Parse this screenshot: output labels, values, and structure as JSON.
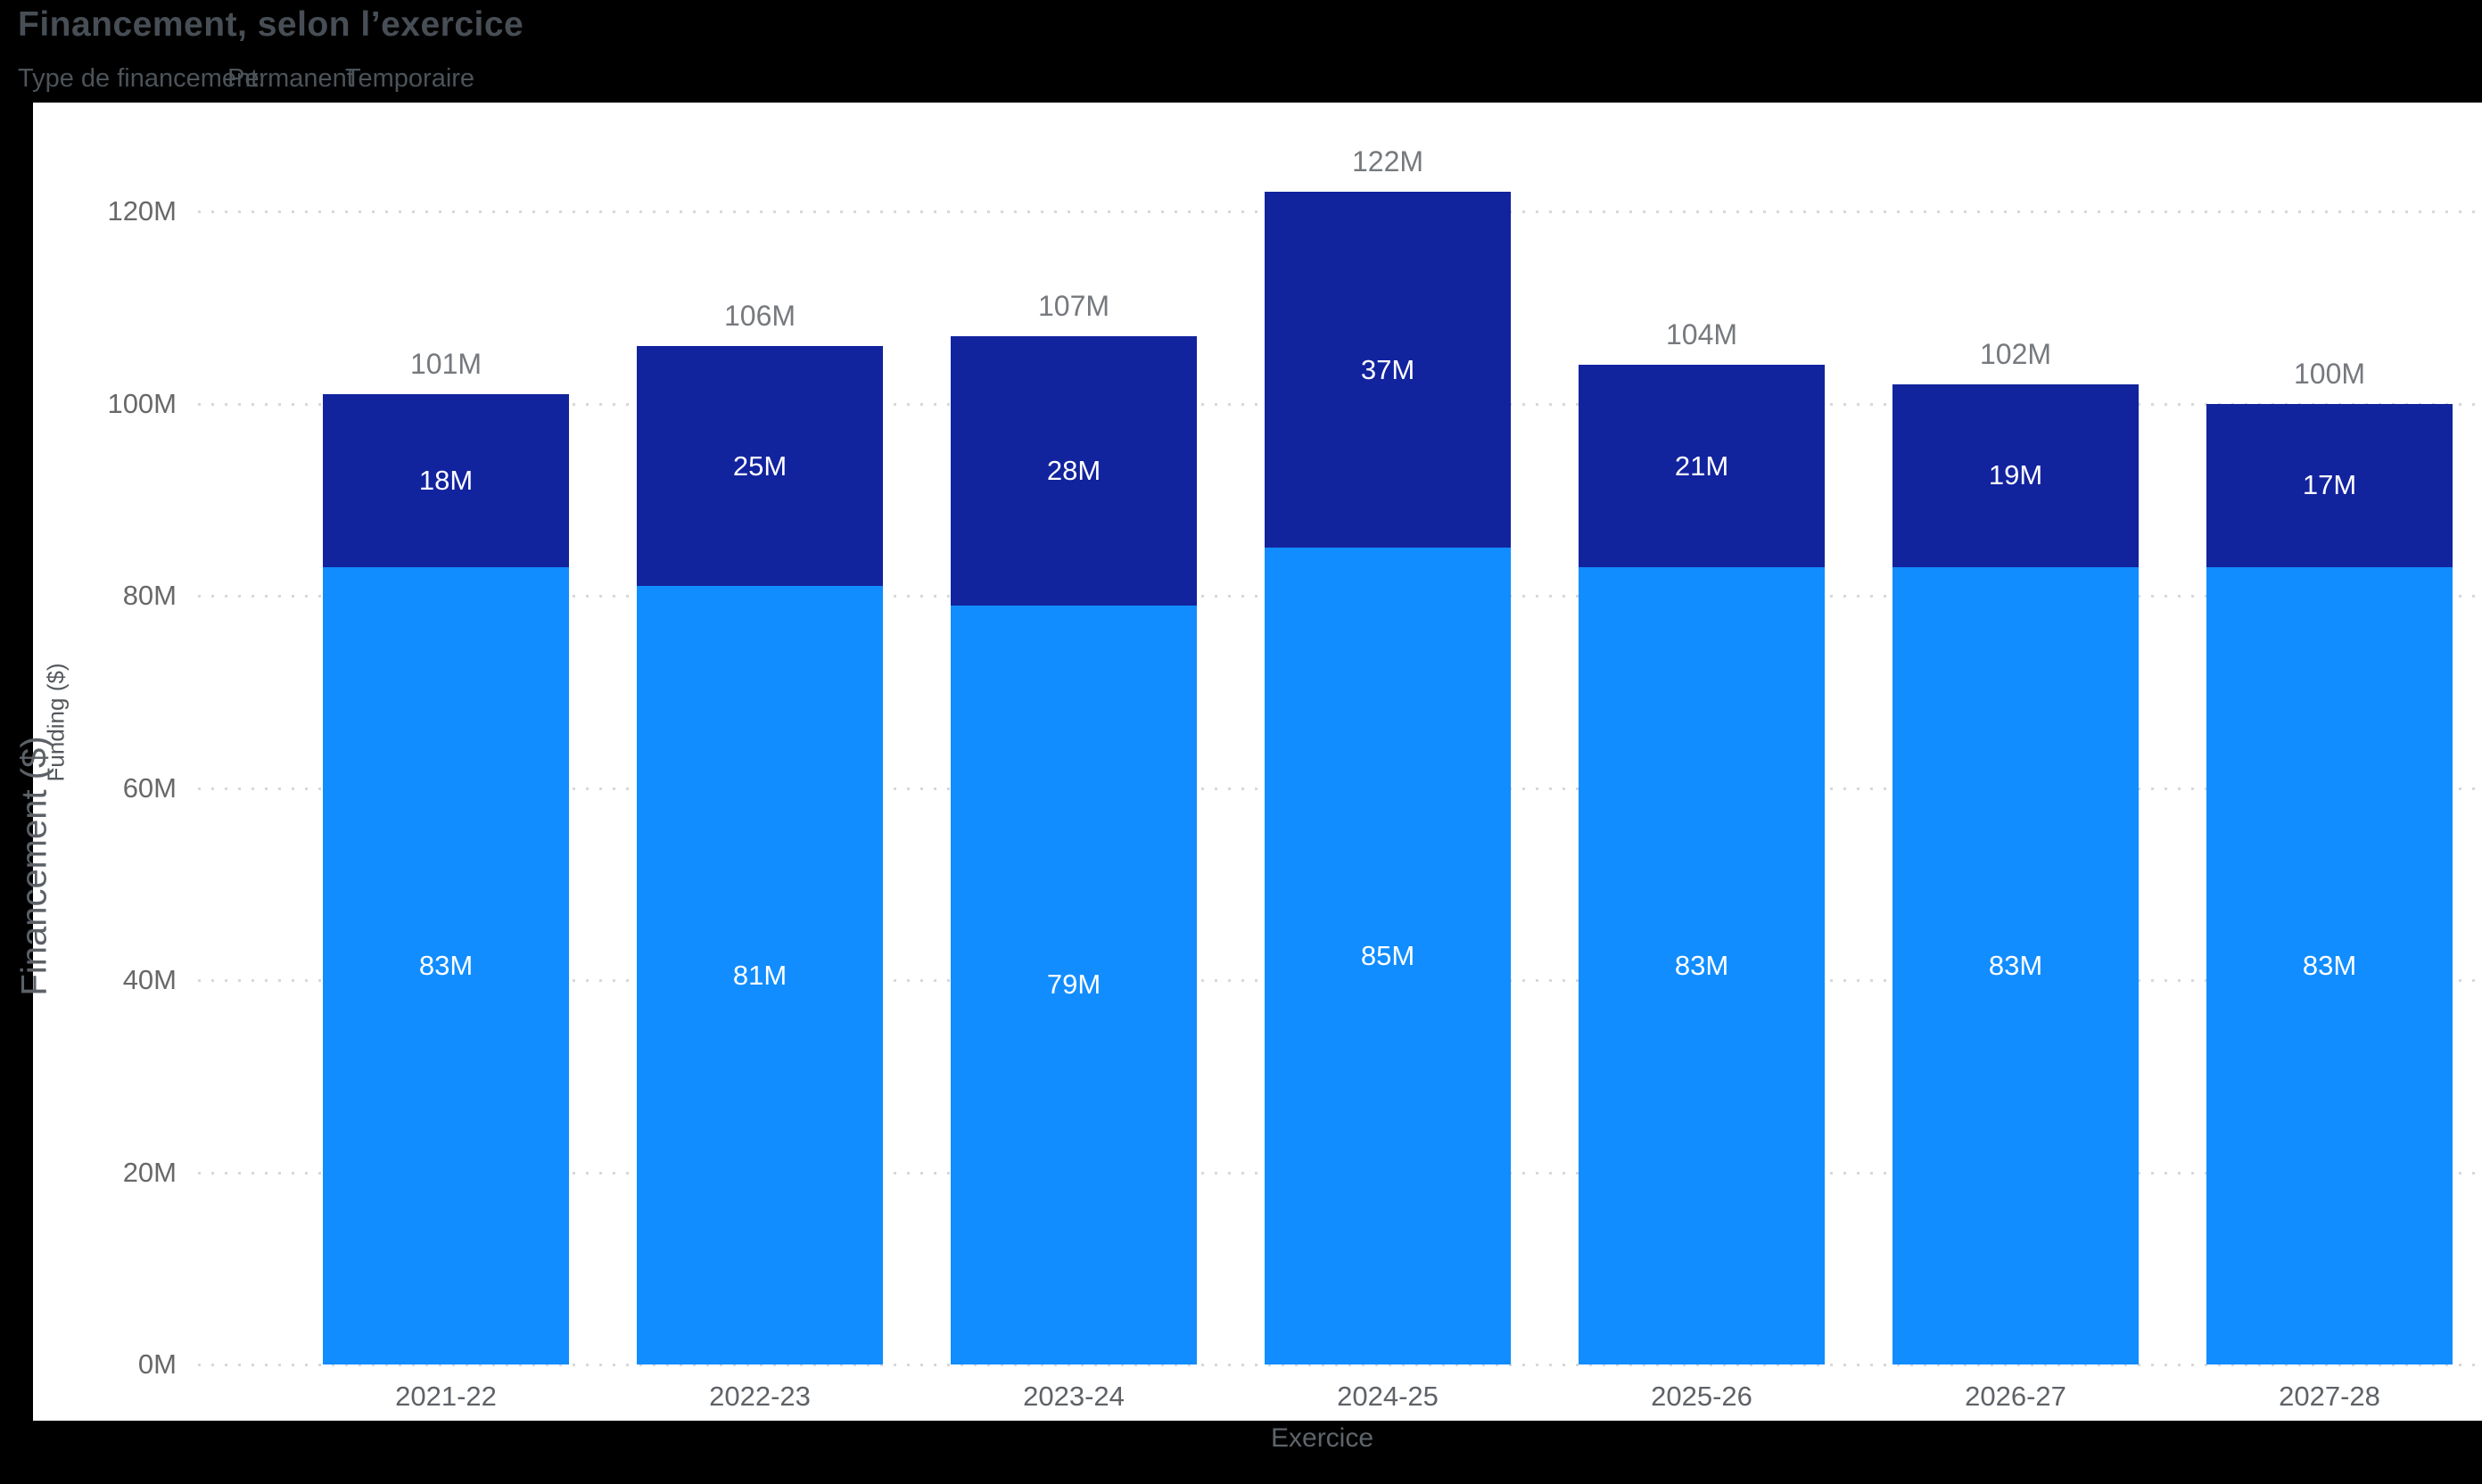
{
  "header": {
    "title": "Financement, selon l’exercice",
    "legend_label": "Type de financement:",
    "legend_items": [
      {
        "label": "Permanent",
        "color": "#118DFF"
      },
      {
        "label": "Temporaire",
        "color": "#12239E"
      }
    ]
  },
  "axes": {
    "x_title": "Exercice",
    "y_title_outer": "Financement ($)",
    "y_title_inner": "Funding ($)"
  },
  "chart_data": {
    "type": "bar",
    "stacked": true,
    "title": "Financement, selon l’exercice",
    "xlabel": "Exercice",
    "ylabel": "Financement ($)",
    "ylabel_secondary": "Funding ($)",
    "categories": [
      "2021-22",
      "2022-23",
      "2023-24",
      "2024-25",
      "2025-26",
      "2026-27",
      "2027-28"
    ],
    "series": [
      {
        "name": "Permanent",
        "color": "#118DFF",
        "values": [
          83,
          81,
          79,
          85,
          83,
          83,
          83
        ],
        "labels": [
          "83M",
          "81M",
          "79M",
          "85M",
          "83M",
          "83M",
          "83M"
        ]
      },
      {
        "name": "Temporaire",
        "color": "#12239E",
        "values": [
          18,
          25,
          28,
          37,
          21,
          19,
          17
        ],
        "labels": [
          "18M",
          "25M",
          "28M",
          "37M",
          "21M",
          "19M",
          "17M"
        ]
      }
    ],
    "totals": [
      101,
      106,
      107,
      122,
      104,
      102,
      100
    ],
    "total_labels": [
      "101M",
      "106M",
      "107M",
      "122M",
      "104M",
      "102M",
      "100M"
    ],
    "y_ticks": [
      {
        "value": 0,
        "label": "0M"
      },
      {
        "value": 20,
        "label": "20M"
      },
      {
        "value": 40,
        "label": "40M"
      },
      {
        "value": 60,
        "label": "60M"
      },
      {
        "value": 80,
        "label": "80M"
      },
      {
        "value": 100,
        "label": "100M"
      },
      {
        "value": 120,
        "label": "120M"
      }
    ],
    "ylim": [
      0,
      120
    ],
    "grid": "horizontal-dotted",
    "legend_position": "top",
    "colors": {
      "plot_background": "#ffffff",
      "page_background": "#000000",
      "gridline": "#d8d8d8",
      "segment_label": "#ffffff",
      "total_label": "#76797d",
      "tick_label": "#686868"
    }
  }
}
